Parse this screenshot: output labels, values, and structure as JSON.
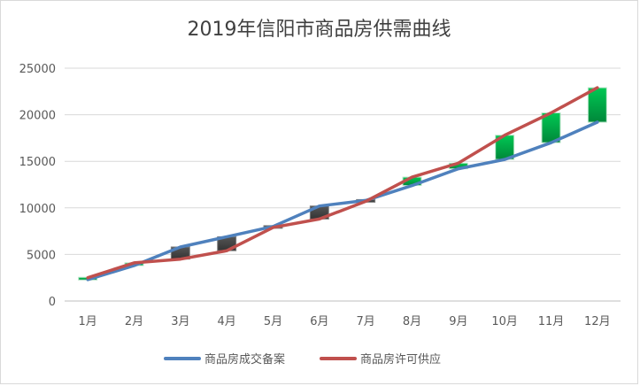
{
  "chart_data": {
    "type": "line",
    "title": "2019年信阳市商品房供需曲线",
    "xlabel": "",
    "ylabel": "",
    "ylim": [
      0,
      25000
    ],
    "yticks": [
      0,
      5000,
      10000,
      15000,
      20000,
      25000
    ],
    "categories": [
      "1月",
      "2月",
      "3月",
      "4月",
      "5月",
      "6月",
      "7月",
      "8月",
      "9月",
      "10月",
      "11月",
      "12月"
    ],
    "series": [
      {
        "name": "商品房成交备案",
        "color": "#4f81bd",
        "values": [
          2300,
          3800,
          5800,
          6900,
          8000,
          10200,
          10800,
          12400,
          14200,
          15200,
          17000,
          19200
        ]
      },
      {
        "name": "商品房许可供应",
        "color": "#c0504d",
        "values": [
          2500,
          4100,
          4500,
          5400,
          7900,
          8800,
          10700,
          13300,
          14800,
          17800,
          20200,
          22900
        ]
      }
    ],
    "up_color": "#00b050",
    "down_color": "#404040",
    "grid": true,
    "legend": "bottom"
  }
}
